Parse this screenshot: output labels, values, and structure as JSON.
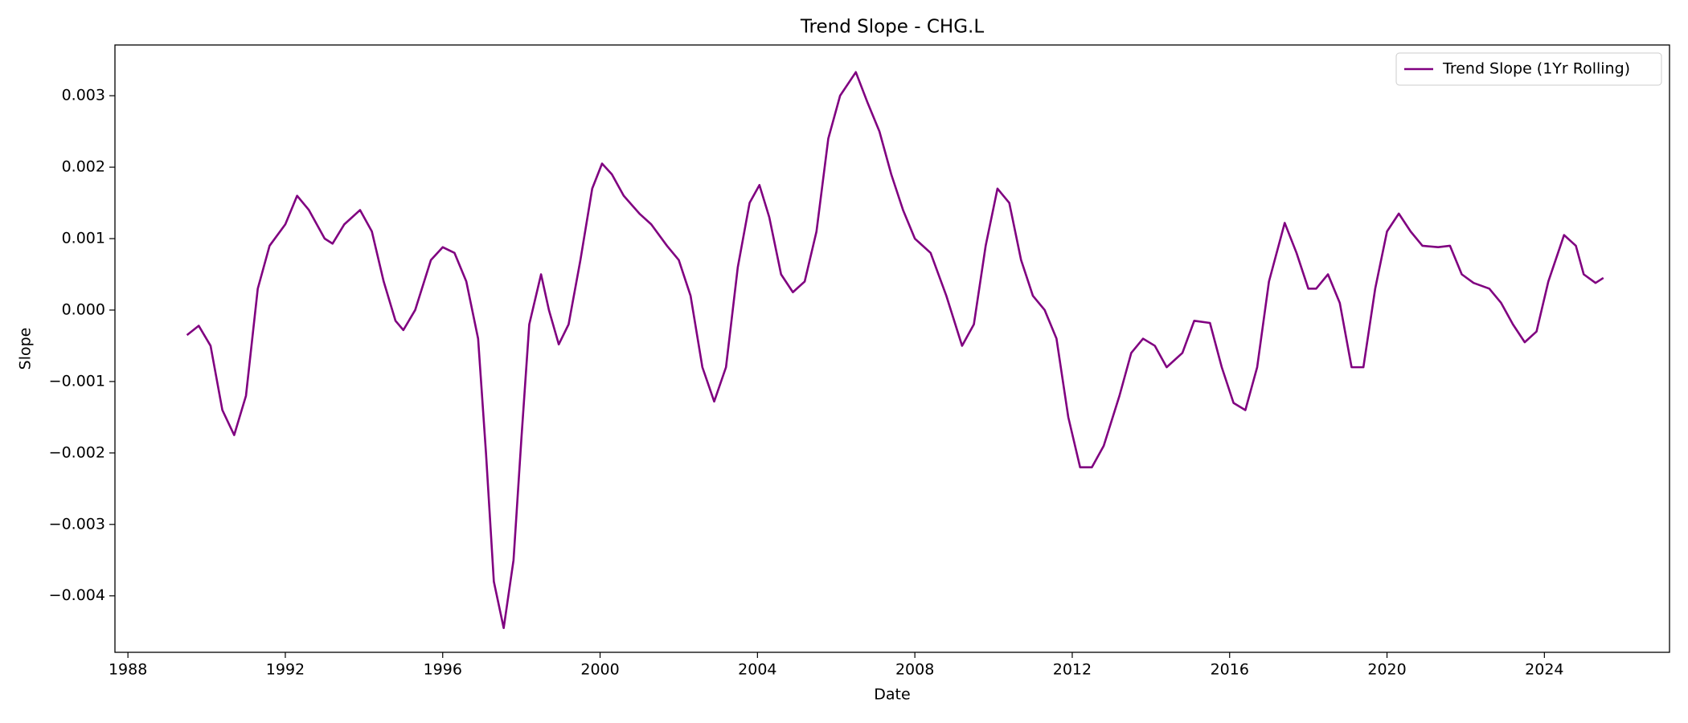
{
  "chart_data": {
    "type": "line",
    "title": "Trend Slope - CHG.L",
    "x_label": "Date",
    "y_label": "Slope",
    "legend": "upper right",
    "grid": false,
    "xlim": [
      1987.67,
      2027.18
    ],
    "xticks": [
      1988,
      1992,
      1996,
      2000,
      2004,
      2008,
      2012,
      2016,
      2020,
      2024
    ],
    "ylim": [
      -0.00479,
      0.00371
    ],
    "yticks": [
      {
        "value": -0.004,
        "label": "−0.004"
      },
      {
        "value": -0.003,
        "label": "−0.003"
      },
      {
        "value": -0.002,
        "label": "−0.002"
      },
      {
        "value": -0.001,
        "label": "−0.001"
      },
      {
        "value": 0,
        "label": "0.000"
      },
      0.001,
      0.002,
      0.003
    ],
    "x": [
      1989.5,
      1989.8,
      1990.1,
      1990.4,
      1990.7,
      1991.0,
      1991.3,
      1991.6,
      1992.0,
      1992.3,
      1992.6,
      1993.0,
      1993.2,
      1993.5,
      1993.9,
      1994.2,
      1994.5,
      1994.8,
      1995.0,
      1995.3,
      1995.7,
      1996.0,
      1996.3,
      1996.6,
      1996.9,
      1997.1,
      1997.3,
      1997.55,
      1997.8,
      1998.0,
      1998.2,
      1998.5,
      1998.7,
      1998.95,
      1999.2,
      1999.5,
      1999.8,
      2000.05,
      2000.3,
      2000.6,
      2001.0,
      2001.3,
      2001.7,
      2002.0,
      2002.3,
      2002.6,
      2002.9,
      2003.2,
      2003.5,
      2003.8,
      2004.05,
      2004.3,
      2004.6,
      2004.9,
      2005.2,
      2005.5,
      2005.8,
      2006.1,
      2006.5,
      2006.8,
      2007.1,
      2007.4,
      2007.7,
      2008.0,
      2008.4,
      2008.8,
      2009.2,
      2009.5,
      2009.8,
      2010.1,
      2010.4,
      2010.7,
      2011.0,
      2011.3,
      2011.6,
      2011.9,
      2012.2,
      2012.5,
      2012.8,
      2013.2,
      2013.5,
      2013.8,
      2014.1,
      2014.4,
      2014.8,
      2015.1,
      2015.5,
      2015.8,
      2016.1,
      2016.4,
      2016.7,
      2017.0,
      2017.4,
      2017.7,
      2018.0,
      2018.2,
      2018.5,
      2018.8,
      2019.1,
      2019.4,
      2019.7,
      2020.0,
      2020.3,
      2020.6,
      2020.9,
      2021.3,
      2021.6,
      2021.9,
      2022.2,
      2022.6,
      2022.9,
      2023.2,
      2023.5,
      2023.8,
      2024.1,
      2024.5,
      2024.8,
      2025.0,
      2025.3,
      2025.5
    ],
    "series": [
      {
        "name": "Trend Slope (1Yr Rolling)",
        "color": "#800080",
        "values": [
          -0.00035,
          -0.00022,
          -0.0005,
          -0.0014,
          -0.00175,
          -0.0012,
          0.0003,
          0.0009,
          0.0012,
          0.0016,
          0.0014,
          0.001,
          0.00093,
          0.0012,
          0.0014,
          0.0011,
          0.0004,
          -0.00015,
          -0.00028,
          0.0,
          0.0007,
          0.00088,
          0.0008,
          0.0004,
          -0.0004,
          -0.002,
          -0.0038,
          -0.00445,
          -0.0035,
          -0.0018,
          -0.0002,
          0.0005,
          0.0,
          -0.00048,
          -0.0002,
          0.0007,
          0.0017,
          0.00205,
          0.0019,
          0.0016,
          0.00135,
          0.0012,
          0.0009,
          0.0007,
          0.0002,
          -0.0008,
          -0.00128,
          -0.0008,
          0.0006,
          0.0015,
          0.00175,
          0.0013,
          0.0005,
          0.00025,
          0.0004,
          0.0011,
          0.0024,
          0.003,
          0.00333,
          0.0029,
          0.0025,
          0.0019,
          0.0014,
          0.001,
          0.0008,
          0.0002,
          -0.0005,
          -0.0002,
          0.0009,
          0.0017,
          0.0015,
          0.0007,
          0.0002,
          0.0,
          -0.0004,
          -0.0015,
          -0.0022,
          -0.0022,
          -0.0019,
          -0.0012,
          -0.0006,
          -0.0004,
          -0.0005,
          -0.0008,
          -0.0006,
          -0.00015,
          -0.00018,
          -0.0008,
          -0.0013,
          -0.0014,
          -0.0008,
          0.0004,
          0.00122,
          0.0008,
          0.0003,
          0.0003,
          0.0005,
          0.0001,
          -0.0008,
          -0.0008,
          0.0003,
          0.0011,
          0.00135,
          0.0011,
          0.0009,
          0.00088,
          0.0009,
          0.0005,
          0.00038,
          0.0003,
          0.0001,
          -0.0002,
          -0.00045,
          -0.0003,
          0.0004,
          0.00105,
          0.0009,
          0.0005,
          0.00038,
          0.00045
        ]
      }
    ]
  }
}
